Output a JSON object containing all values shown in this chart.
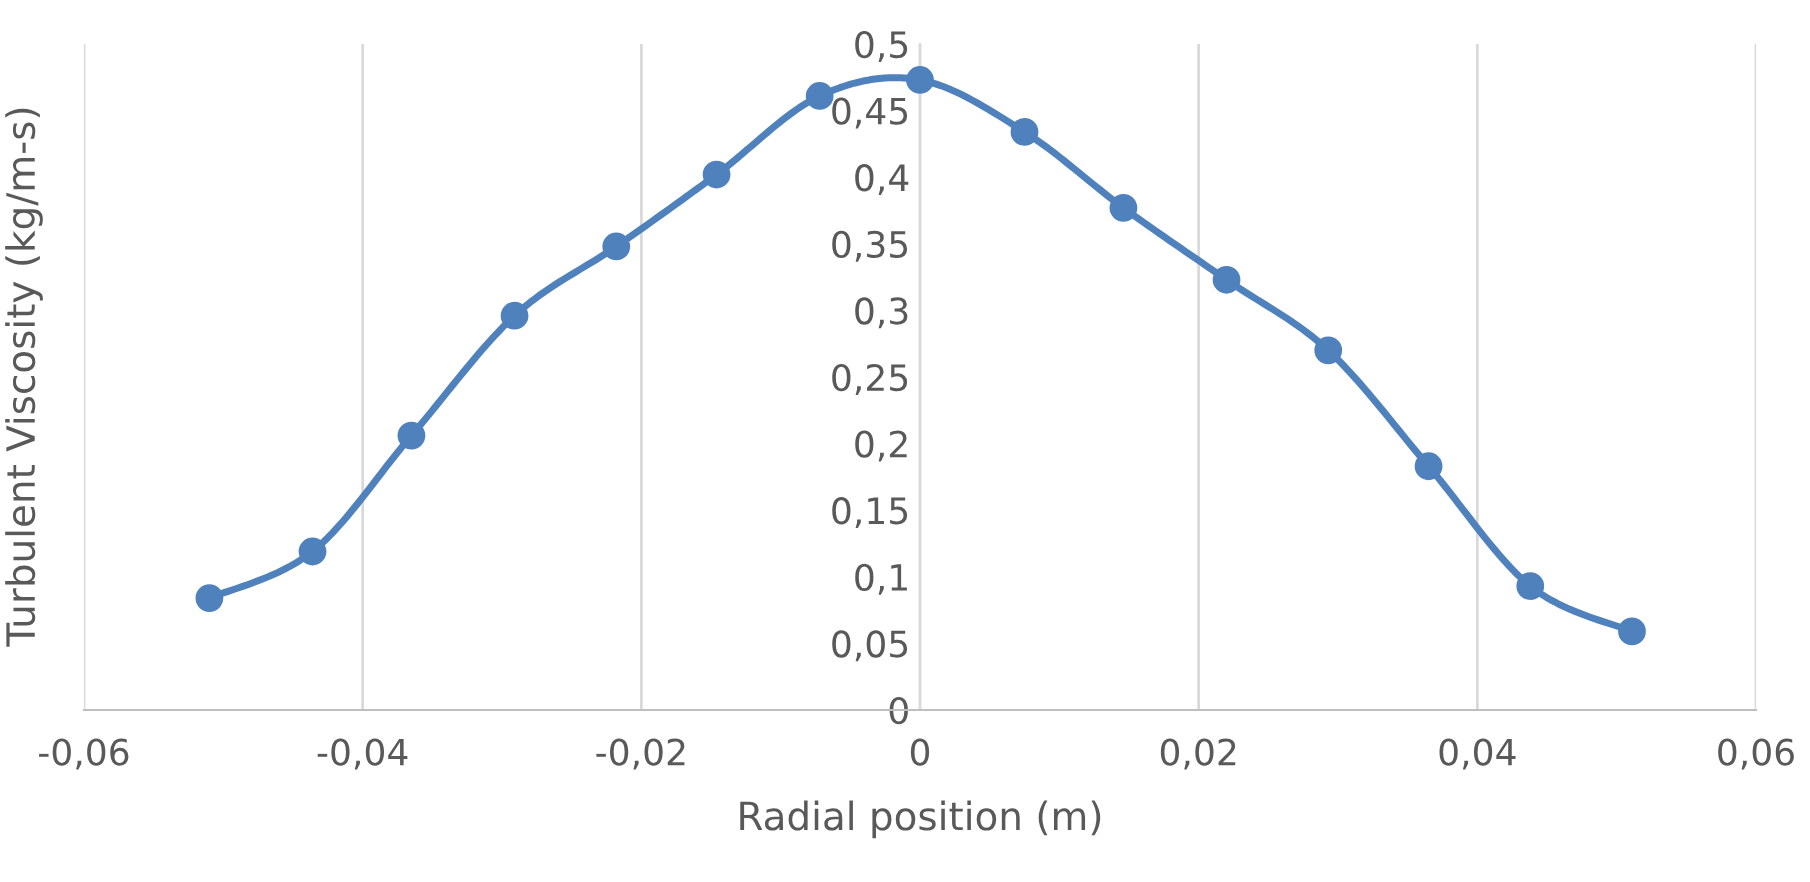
{
  "chart_data": {
    "type": "line",
    "xlabel": "Radial position (m)",
    "ylabel": "Turbulent Viscosity (kg/m-s)",
    "x": [
      -0.051,
      -0.0436,
      -0.0365,
      -0.0291,
      -0.0218,
      -0.0146,
      -0.0072,
      0,
      0.0075,
      0.0146,
      0.022,
      0.0293,
      0.0365,
      0.0438,
      0.0511
    ],
    "series": [
      {
        "color": "#4f81bd",
        "values": [
          0.084,
          0.119,
          0.206,
          0.296,
          0.348,
          0.402,
          0.461,
          0.473,
          0.434,
          0.377,
          0.323,
          0.27,
          0.183,
          0.093,
          0.059
        ]
      }
    ],
    "xlim": [
      -0.06,
      0.06
    ],
    "xticks": [
      {
        "value": -0.06,
        "label": "-0,06"
      },
      {
        "value": -0.04,
        "label": "-0,04"
      },
      {
        "value": -0.02,
        "label": "-0,02"
      },
      0,
      {
        "value": 0.02,
        "label": "0,02"
      },
      {
        "value": 0.04,
        "label": "0,04"
      },
      {
        "value": 0.06,
        "label": "0,06"
      }
    ],
    "ylim": [
      0,
      0.5
    ],
    "yticks": [
      0,
      {
        "value": 0.05,
        "label": "0,05"
      },
      {
        "value": 0.1,
        "label": "0,1"
      },
      {
        "value": 0.15,
        "label": "0,15"
      },
      {
        "value": 0.2,
        "label": "0,2"
      },
      {
        "value": 0.25,
        "label": "0,25"
      },
      {
        "value": 0.3,
        "label": "0,3"
      },
      {
        "value": 0.35,
        "label": "0,35"
      },
      {
        "value": 0.4,
        "label": "0,4"
      },
      {
        "value": 0.45,
        "label": "0,45"
      },
      {
        "value": 0.5,
        "label": "0,5"
      }
    ],
    "grid": "x",
    "marker": "circle",
    "line_style": "solid",
    "legend": false
  }
}
